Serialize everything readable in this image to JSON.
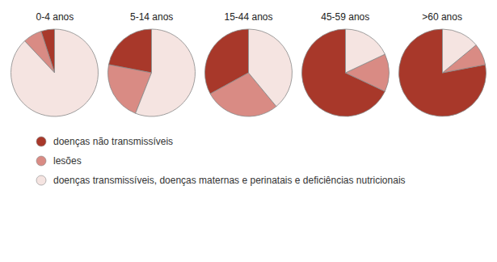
{
  "chart_data": {
    "type": "pie",
    "categories": [
      "doenças não transmissíveis",
      "lesões",
      "doenças transmissíveis, doenças maternas e perinatais e deficiências nutricionais"
    ],
    "colors": [
      "#a8382a",
      "#d98b84",
      "#f5e4e1"
    ],
    "series": [
      {
        "name": "0-4 anos",
        "values": [
          5,
          7,
          88
        ]
      },
      {
        "name": "5-14 anos",
        "values": [
          22,
          22,
          56
        ]
      },
      {
        "name": "15-44 anos",
        "values": [
          33,
          28,
          39
        ]
      },
      {
        "name": "45-59 anos",
        "values": [
          68,
          14,
          18
        ]
      },
      {
        "name": ">60 anos",
        "values": [
          78,
          8,
          14
        ]
      }
    ],
    "legend": "bottom"
  }
}
